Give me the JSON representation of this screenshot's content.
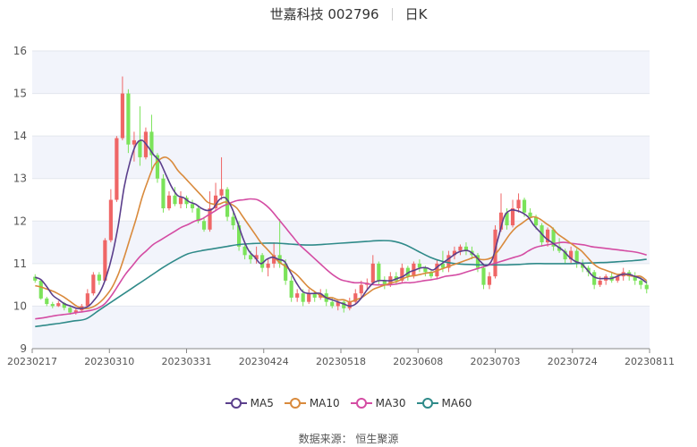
{
  "header": {
    "stock": "世嘉科技 002796",
    "period": "日K"
  },
  "source": "数据来源： 恒生聚源",
  "colors": {
    "up": "#ef6666",
    "down": "#7be35a",
    "ma5": "#5b3f8c",
    "ma10": "#d98a3c",
    "ma30": "#d44ca3",
    "ma60": "#2f8a89"
  },
  "chart_data": {
    "type": "candlestick",
    "ylim": [
      9,
      16
    ],
    "yticks": [
      "9",
      "10",
      "11",
      "12",
      "13",
      "14",
      "15",
      "16"
    ],
    "xticks": [
      "20230217",
      "20230310",
      "20230331",
      "20230424",
      "20230518",
      "20230608",
      "20230703",
      "20230724",
      "20230811"
    ],
    "legend": [
      "MA5",
      "MA10",
      "MA30",
      "MA60"
    ],
    "legend_position": "bottom",
    "candles": [
      [
        10.69,
        10.6,
        10.75,
        10.55
      ],
      [
        10.6,
        10.18,
        10.62,
        10.15
      ],
      [
        10.18,
        10.05,
        10.22,
        10.0
      ],
      [
        10.05,
        10.0,
        10.1,
        9.95
      ],
      [
        10.0,
        10.07,
        10.12,
        9.98
      ],
      [
        10.07,
        9.96,
        10.1,
        9.9
      ],
      [
        9.96,
        9.85,
        10.0,
        9.8
      ],
      [
        9.85,
        9.9,
        9.95,
        9.8
      ],
      [
        9.9,
        10.0,
        10.05,
        9.85
      ],
      [
        10.0,
        10.3,
        10.4,
        9.98
      ],
      [
        10.3,
        10.74,
        10.8,
        10.25
      ],
      [
        10.74,
        10.6,
        10.8,
        10.5
      ],
      [
        10.6,
        11.55,
        11.6,
        10.58
      ],
      [
        11.55,
        12.5,
        12.75,
        11.5
      ],
      [
        12.5,
        13.95,
        14.0,
        12.45
      ],
      [
        13.95,
        15.0,
        15.4,
        13.9
      ],
      [
        15.0,
        13.8,
        15.1,
        13.6
      ],
      [
        13.8,
        13.9,
        14.1,
        13.4
      ],
      [
        13.9,
        13.5,
        14.7,
        13.3
      ],
      [
        13.5,
        14.1,
        14.2,
        13.45
      ],
      [
        14.1,
        13.55,
        14.5,
        13.2
      ],
      [
        13.55,
        13.0,
        13.6,
        12.9
      ],
      [
        13.0,
        12.3,
        13.1,
        12.2
      ],
      [
        12.3,
        12.6,
        12.7,
        12.25
      ],
      [
        12.6,
        12.4,
        12.8,
        12.35
      ],
      [
        12.4,
        12.55,
        12.7,
        12.3
      ],
      [
        12.55,
        12.4,
        12.6,
        12.3
      ],
      [
        12.4,
        12.3,
        12.5,
        12.2
      ],
      [
        12.3,
        12.0,
        12.35,
        11.95
      ],
      [
        12.0,
        11.8,
        12.1,
        11.75
      ],
      [
        11.8,
        12.3,
        12.7,
        11.75
      ],
      [
        12.3,
        12.6,
        12.9,
        12.25
      ],
      [
        12.6,
        12.75,
        13.5,
        12.5
      ],
      [
        12.75,
        12.1,
        12.8,
        12.0
      ],
      [
        12.1,
        11.9,
        12.2,
        11.8
      ],
      [
        11.9,
        11.4,
        12.0,
        11.3
      ],
      [
        11.4,
        11.2,
        11.5,
        11.1
      ],
      [
        11.2,
        11.1,
        11.3,
        11.0
      ],
      [
        11.1,
        11.2,
        11.4,
        11.0
      ],
      [
        11.2,
        10.9,
        11.25,
        10.8
      ],
      [
        10.9,
        11.0,
        11.1,
        10.7
      ],
      [
        11.0,
        11.2,
        11.5,
        10.9
      ],
      [
        11.2,
        11.0,
        12.05,
        10.9
      ],
      [
        11.0,
        10.6,
        11.1,
        10.5
      ],
      [
        10.6,
        10.2,
        10.7,
        10.1
      ],
      [
        10.2,
        10.3,
        10.4,
        10.1
      ],
      [
        10.3,
        10.1,
        10.4,
        10.0
      ],
      [
        10.1,
        10.3,
        10.4,
        10.05
      ],
      [
        10.3,
        10.2,
        10.35,
        10.1
      ],
      [
        10.2,
        10.3,
        10.4,
        10.15
      ],
      [
        10.3,
        10.1,
        10.4,
        10.0
      ],
      [
        10.1,
        10.0,
        10.2,
        9.95
      ],
      [
        10.0,
        10.1,
        10.15,
        9.9
      ],
      [
        10.1,
        9.95,
        10.15,
        9.85
      ],
      [
        9.95,
        10.1,
        10.2,
        9.9
      ],
      [
        10.1,
        10.3,
        10.4,
        10.05
      ],
      [
        10.3,
        10.5,
        10.6,
        10.2
      ],
      [
        10.5,
        10.55,
        10.65,
        10.4
      ],
      [
        10.55,
        11.0,
        11.2,
        10.5
      ],
      [
        11.0,
        10.6,
        11.05,
        10.5
      ],
      [
        10.6,
        10.5,
        10.7,
        10.4
      ],
      [
        10.5,
        10.7,
        10.8,
        10.45
      ],
      [
        10.7,
        10.6,
        10.8,
        10.5
      ],
      [
        10.6,
        10.9,
        11.0,
        10.55
      ],
      [
        10.9,
        10.7,
        10.95,
        10.6
      ],
      [
        10.7,
        11.0,
        11.05,
        10.65
      ],
      [
        11.0,
        10.9,
        11.1,
        10.8
      ],
      [
        10.9,
        10.8,
        10.95,
        10.7
      ],
      [
        10.8,
        10.7,
        10.85,
        10.65
      ],
      [
        10.7,
        11.0,
        11.1,
        10.65
      ],
      [
        11.0,
        10.9,
        11.3,
        10.8
      ],
      [
        10.9,
        11.2,
        11.3,
        10.8
      ],
      [
        11.2,
        11.3,
        11.4,
        11.1
      ],
      [
        11.3,
        11.4,
        11.45,
        11.2
      ],
      [
        11.4,
        11.3,
        11.5,
        11.2
      ],
      [
        11.3,
        11.2,
        11.4,
        11.1
      ],
      [
        11.2,
        10.9,
        11.25,
        10.8
      ],
      [
        10.9,
        10.5,
        11.0,
        10.4
      ],
      [
        10.5,
        10.7,
        10.8,
        10.4
      ],
      [
        10.7,
        11.8,
        11.9,
        10.65
      ],
      [
        11.8,
        12.2,
        12.65,
        11.75
      ],
      [
        12.2,
        11.9,
        12.3,
        11.8
      ],
      [
        11.9,
        12.3,
        12.5,
        11.85
      ],
      [
        12.3,
        12.5,
        12.65,
        12.2
      ],
      [
        12.5,
        12.2,
        12.55,
        12.1
      ],
      [
        12.2,
        12.1,
        12.3,
        12.0
      ],
      [
        12.1,
        11.9,
        12.15,
        11.8
      ],
      [
        11.9,
        11.5,
        11.95,
        11.4
      ],
      [
        11.5,
        11.8,
        11.85,
        11.4
      ],
      [
        11.8,
        11.4,
        11.85,
        11.3
      ],
      [
        11.4,
        11.3,
        11.6,
        11.25
      ],
      [
        11.3,
        11.1,
        11.35,
        11.0
      ],
      [
        11.1,
        11.3,
        11.4,
        11.0
      ],
      [
        11.3,
        11.0,
        11.35,
        10.9
      ],
      [
        11.0,
        10.9,
        11.1,
        10.8
      ],
      [
        10.9,
        10.8,
        10.95,
        10.7
      ],
      [
        10.8,
        10.5,
        10.85,
        10.4
      ],
      [
        10.5,
        10.6,
        10.7,
        10.45
      ],
      [
        10.6,
        10.7,
        10.75,
        10.5
      ],
      [
        10.7,
        10.6,
        10.8,
        10.55
      ],
      [
        10.6,
        10.7,
        10.75,
        10.55
      ],
      [
        10.7,
        10.8,
        10.9,
        10.6
      ],
      [
        10.8,
        10.7,
        10.85,
        10.6
      ],
      [
        10.7,
        10.6,
        10.8,
        10.5
      ],
      [
        10.6,
        10.5,
        10.7,
        10.4
      ],
      [
        10.5,
        10.4,
        10.6,
        10.3
      ]
    ],
    "ma5": [
      10.68,
      10.62,
      10.45,
      10.25,
      10.15,
      10.05,
      10.0,
      9.95,
      9.95,
      10.0,
      10.15,
      10.35,
      10.7,
      11.2,
      11.9,
      12.8,
      13.4,
      13.8,
      13.9,
      13.75,
      13.55,
      13.4,
      13.1,
      12.8,
      12.6,
      12.55,
      12.45,
      12.4,
      12.3,
      12.25,
      12.3,
      12.5,
      12.55,
      12.35,
      12.0,
      11.6,
      11.3,
      11.15,
      11.0,
      11.1,
      11.15,
      11.1,
      11.05,
      10.8,
      10.55,
      10.35,
      10.3,
      10.3,
      10.3,
      10.2,
      10.15,
      10.1,
      10.05,
      10.0,
      10.05,
      10.2,
      10.4,
      10.55,
      10.6,
      10.6,
      10.6,
      10.65,
      10.7,
      10.8,
      10.85,
      10.9,
      10.9,
      10.85,
      10.95,
      11.05,
      11.15,
      11.25,
      11.3,
      11.3,
      11.2,
      11.05,
      10.95,
      11.1,
      11.6,
      12.1,
      12.25,
      12.25,
      12.2,
      12.1,
      11.9,
      11.75,
      11.6,
      11.5,
      11.4,
      11.3,
      11.15,
      11.05,
      11.0,
      10.85,
      10.7,
      10.65,
      10.65,
      10.65,
      10.7,
      10.75,
      10.75,
      10.7,
      10.65,
      10.55
    ],
    "ma10": [
      10.48,
      10.45,
      10.4,
      10.35,
      10.28,
      10.2,
      10.1,
      10.0,
      9.95,
      9.95,
      10.0,
      10.1,
      10.25,
      10.45,
      10.75,
      11.15,
      11.6,
      12.05,
      12.55,
      12.95,
      13.3,
      13.45,
      13.5,
      13.4,
      13.2,
      13.05,
      12.9,
      12.75,
      12.6,
      12.45,
      12.4,
      12.4,
      12.45,
      12.4,
      12.3,
      12.1,
      11.9,
      11.7,
      11.5,
      11.35,
      11.2,
      11.05,
      10.95,
      10.85,
      10.75,
      10.6,
      10.45,
      10.35,
      10.25,
      10.2,
      10.2,
      10.15,
      10.15,
      10.1,
      10.15,
      10.2,
      10.3,
      10.4,
      10.45,
      10.5,
      10.55,
      10.58,
      10.65,
      10.7,
      10.72,
      10.75,
      10.78,
      10.8,
      10.85,
      10.9,
      10.95,
      11.0,
      11.05,
      11.1,
      11.15,
      11.1,
      11.1,
      11.15,
      11.3,
      11.5,
      11.7,
      11.85,
      11.95,
      12.05,
      12.1,
      12.05,
      11.95,
      11.85,
      11.7,
      11.6,
      11.5,
      11.4,
      11.3,
      11.15,
      11.0,
      10.9,
      10.85,
      10.8,
      10.75,
      10.75,
      10.72,
      10.7,
      10.7,
      10.6
    ],
    "ma30": [
      9.7,
      9.72,
      9.75,
      9.78,
      9.8,
      9.82,
      9.85,
      9.87,
      9.9,
      9.95,
      10.05,
      10.25,
      10.5,
      10.75,
      10.95,
      11.15,
      11.3,
      11.45,
      11.55,
      11.65,
      11.75,
      11.85,
      11.92,
      12.0,
      12.05,
      12.15,
      12.25,
      12.35,
      12.42,
      12.48,
      12.5,
      12.52,
      12.5,
      12.4,
      12.25,
      12.05,
      11.85,
      11.65,
      11.45,
      11.3,
      11.15,
      11.0,
      10.85,
      10.72,
      10.62,
      10.58,
      10.55,
      10.55,
      10.52,
      10.5,
      10.5,
      10.5,
      10.52,
      10.55,
      10.55,
      10.57,
      10.6,
      10.62,
      10.65,
      10.7,
      10.72,
      10.75,
      10.8,
      10.85,
      10.9,
      10.95,
      11.0,
      11.05,
      11.1,
      11.15,
      11.2,
      11.3,
      11.38,
      11.42,
      11.45,
      11.48,
      11.5,
      11.48,
      11.46,
      11.44,
      11.4,
      11.38,
      11.36,
      11.34,
      11.32,
      11.3,
      11.28,
      11.25,
      11.2
    ],
    "ma60": [
      9.52,
      9.56,
      9.6,
      9.65,
      9.7,
      9.9,
      10.1,
      10.3,
      10.5,
      10.7,
      10.9,
      11.08,
      11.23,
      11.3,
      11.35,
      11.4,
      11.45,
      11.47,
      11.48,
      11.48,
      11.46,
      11.44,
      11.44,
      11.46,
      11.48,
      11.5,
      11.52,
      11.54,
      11.53,
      11.45,
      11.3,
      11.15,
      11.05,
      11.0,
      10.98,
      10.97,
      10.97,
      10.97,
      10.98,
      11.0,
      11.0,
      11.0,
      11.0,
      11.01,
      11.02,
      11.03,
      11.05,
      11.07,
      11.1
    ]
  }
}
